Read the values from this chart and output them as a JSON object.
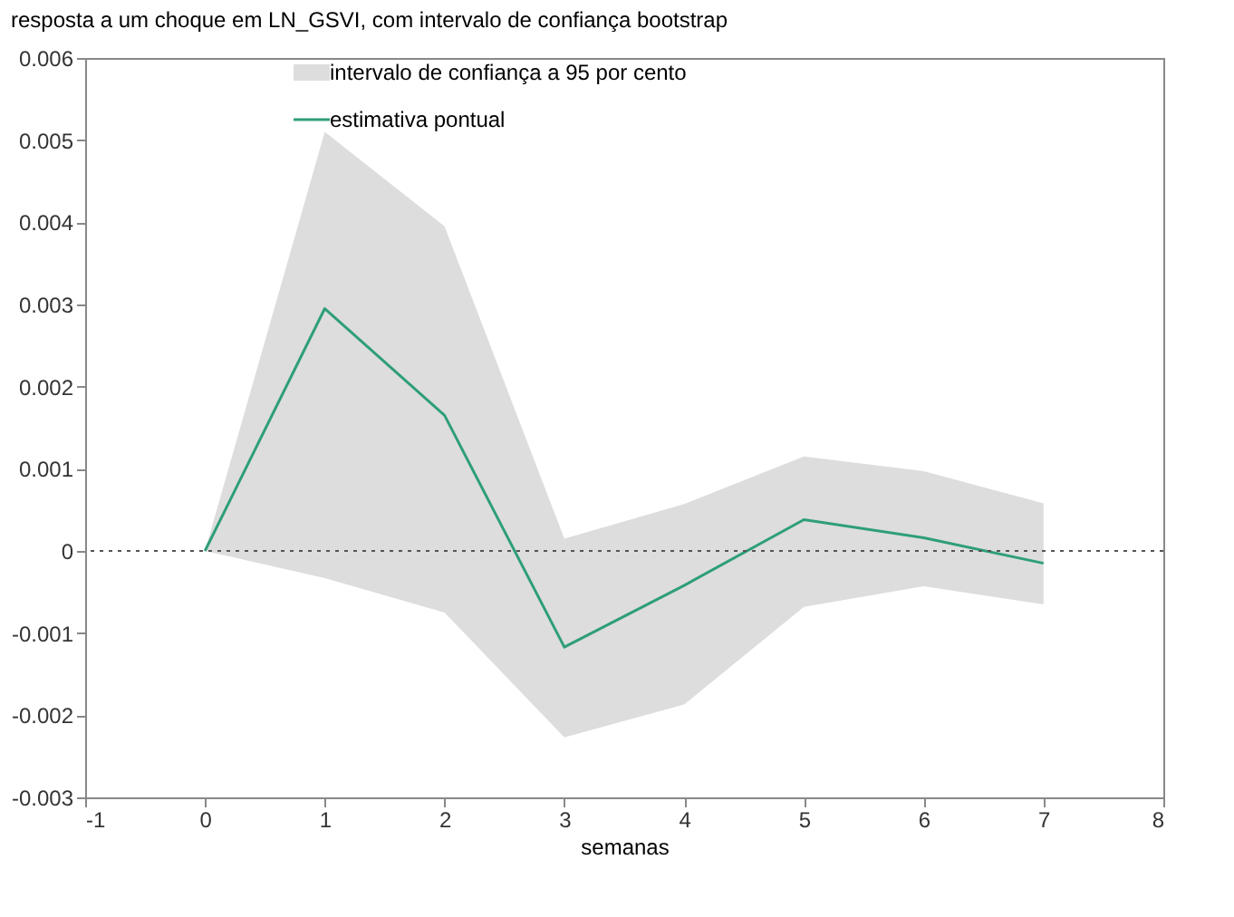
{
  "chart_data": {
    "type": "line",
    "title": "resposta a um choque em LN_GSVI, com intervalo de confiança bootstrap",
    "xlabel": "semanas",
    "x": [
      0,
      1,
      2,
      3,
      4,
      5,
      6,
      7
    ],
    "series": [
      {
        "name": "estimativa pontual",
        "type": "line",
        "color": "#2e9e7a",
        "values": [
          0,
          0.00295,
          0.00165,
          -0.00117,
          -0.00042,
          0.00038,
          0.00016,
          -0.00015
        ],
        "lower": [
          0,
          -0.00033,
          -0.00075,
          -0.00227,
          -0.00187,
          -0.00068,
          -0.00043,
          -0.00065
        ],
        "upper": [
          0,
          0.0051,
          0.00395,
          0.00015,
          0.00057,
          0.00115,
          0.00097,
          0.00058
        ]
      }
    ],
    "annotations": [
      "intervalo de confiança a 95 por cento"
    ],
    "xlim": [
      -1,
      8
    ],
    "xticks": [
      -1,
      0,
      1,
      2,
      3,
      4,
      5,
      6,
      7,
      8
    ],
    "ylim": [
      -0.003,
      0.006
    ],
    "yticks": [
      -0.003,
      -0.002,
      -0.001,
      0,
      0.001,
      0.002,
      0.003,
      0.004,
      0.005,
      0.006
    ],
    "ref_lines": [
      {
        "axis": "y",
        "value": 0,
        "line_style": "dotted"
      }
    ],
    "grid": false,
    "legend": "top"
  }
}
